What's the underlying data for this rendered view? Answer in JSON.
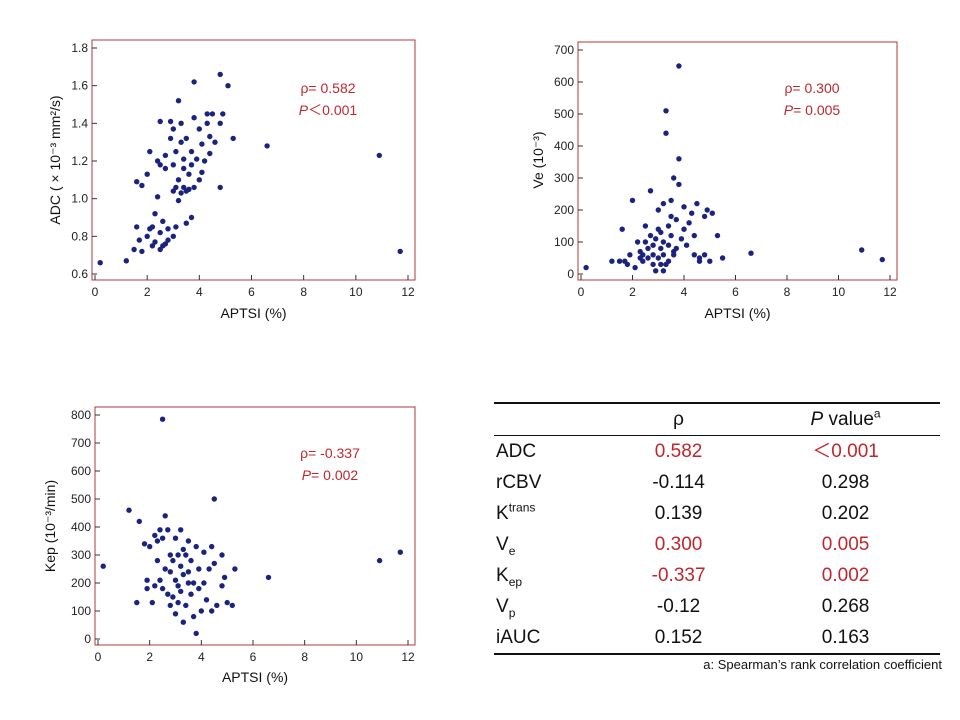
{
  "chart_data": [
    {
      "type": "scatter",
      "id": "adc",
      "xlabel": "APTSI (%)",
      "ylabel": "ADC ( × 10⁻³ mm²/s)",
      "xlim": [
        0,
        12
      ],
      "ylim": [
        0.6,
        1.8
      ],
      "xticks": [
        0,
        2,
        4,
        6,
        8,
        10,
        12
      ],
      "yticks": [
        0.6,
        0.8,
        1.0,
        1.2,
        1.4,
        1.6,
        1.8
      ],
      "ytick_labels": [
        "0.6",
        "0.8",
        "1.0",
        "1.2",
        "1.4",
        "1.6",
        "1.8"
      ],
      "annotation": {
        "rho": "ρ= 0.582",
        "p_label": "P",
        "p_rest": "＜0.001"
      },
      "points": [
        [
          0.2,
          0.66
        ],
        [
          1.2,
          0.67
        ],
        [
          1.5,
          0.73
        ],
        [
          1.6,
          0.85
        ],
        [
          1.8,
          0.72
        ],
        [
          1.7,
          0.78
        ],
        [
          1.6,
          1.09
        ],
        [
          1.8,
          1.07
        ],
        [
          2.0,
          0.8
        ],
        [
          2.1,
          0.84
        ],
        [
          2.0,
          1.13
        ],
        [
          2.1,
          1.25
        ],
        [
          2.2,
          0.85
        ],
        [
          2.2,
          0.75
        ],
        [
          2.3,
          0.77
        ],
        [
          2.3,
          0.92
        ],
        [
          2.4,
          1.01
        ],
        [
          2.4,
          1.2
        ],
        [
          2.5,
          0.73
        ],
        [
          2.5,
          0.82
        ],
        [
          2.5,
          1.18
        ],
        [
          2.5,
          1.41
        ],
        [
          2.6,
          0.75
        ],
        [
          2.6,
          0.88
        ],
        [
          2.7,
          0.76
        ],
        [
          2.7,
          1.16
        ],
        [
          2.7,
          1.23
        ],
        [
          2.8,
          0.84
        ],
        [
          2.8,
          0.78
        ],
        [
          2.9,
          1.32
        ],
        [
          2.9,
          1.41
        ],
        [
          3.0,
          0.8
        ],
        [
          3.0,
          1.04
        ],
        [
          3.0,
          1.18
        ],
        [
          3.0,
          1.37
        ],
        [
          3.1,
          0.85
        ],
        [
          3.1,
          1.06
        ],
        [
          3.1,
          1.25
        ],
        [
          3.2,
          0.99
        ],
        [
          3.2,
          1.1
        ],
        [
          3.2,
          1.52
        ],
        [
          3.3,
          1.03
        ],
        [
          3.3,
          1.3
        ],
        [
          3.3,
          1.4
        ],
        [
          3.4,
          1.06
        ],
        [
          3.4,
          1.16
        ],
        [
          3.4,
          1.21
        ],
        [
          3.5,
          0.87
        ],
        [
          3.5,
          1.04
        ],
        [
          3.5,
          1.32
        ],
        [
          3.6,
          1.05
        ],
        [
          3.6,
          1.13
        ],
        [
          3.7,
          0.9
        ],
        [
          3.7,
          1.18
        ],
        [
          3.7,
          1.25
        ],
        [
          3.8,
          1.06
        ],
        [
          3.8,
          1.43
        ],
        [
          3.8,
          1.62
        ],
        [
          3.9,
          1.21
        ],
        [
          4.0,
          1.37
        ],
        [
          4.0,
          1.1
        ],
        [
          4.1,
          1.14
        ],
        [
          4.1,
          1.29
        ],
        [
          4.2,
          1.2
        ],
        [
          4.3,
          1.4
        ],
        [
          4.3,
          1.45
        ],
        [
          4.4,
          1.24
        ],
        [
          4.4,
          1.33
        ],
        [
          4.5,
          1.45
        ],
        [
          4.6,
          1.3
        ],
        [
          4.8,
          1.06
        ],
        [
          4.8,
          1.4
        ],
        [
          4.8,
          1.66
        ],
        [
          4.9,
          1.45
        ],
        [
          5.1,
          1.6
        ],
        [
          5.3,
          1.32
        ],
        [
          6.6,
          1.28
        ],
        [
          10.9,
          1.23
        ],
        [
          11.7,
          0.72
        ]
      ]
    },
    {
      "type": "scatter",
      "id": "ve",
      "xlabel": "APTSI (%)",
      "ylabel": "Ve (10⁻³)",
      "xlim": [
        0,
        12
      ],
      "ylim": [
        0,
        700
      ],
      "xticks": [
        0,
        2,
        4,
        6,
        8,
        10,
        12
      ],
      "yticks": [
        0,
        100,
        200,
        300,
        400,
        500,
        600,
        700
      ],
      "annotation": {
        "rho": "ρ= 0.300",
        "p_label": "P",
        "p_rest": "= 0.005"
      },
      "points": [
        [
          0.2,
          20
        ],
        [
          1.2,
          40
        ],
        [
          1.5,
          40
        ],
        [
          1.6,
          140
        ],
        [
          1.7,
          40
        ],
        [
          1.8,
          30
        ],
        [
          1.9,
          60
        ],
        [
          2.0,
          230
        ],
        [
          2.1,
          20
        ],
        [
          2.2,
          100
        ],
        [
          2.3,
          50
        ],
        [
          2.3,
          70
        ],
        [
          2.4,
          60
        ],
        [
          2.4,
          40
        ],
        [
          2.5,
          100
        ],
        [
          2.5,
          150
        ],
        [
          2.6,
          50
        ],
        [
          2.6,
          80
        ],
        [
          2.7,
          120
        ],
        [
          2.7,
          260
        ],
        [
          2.8,
          30
        ],
        [
          2.8,
          60
        ],
        [
          2.8,
          90
        ],
        [
          2.9,
          10
        ],
        [
          2.9,
          110
        ],
        [
          3.0,
          50
        ],
        [
          3.0,
          140
        ],
        [
          3.0,
          200
        ],
        [
          3.1,
          30
        ],
        [
          3.1,
          80
        ],
        [
          3.1,
          130
        ],
        [
          3.2,
          10
        ],
        [
          3.2,
          60
        ],
        [
          3.2,
          100
        ],
        [
          3.2,
          220
        ],
        [
          3.3,
          30
        ],
        [
          3.3,
          510
        ],
        [
          3.3,
          440
        ],
        [
          3.4,
          40
        ],
        [
          3.4,
          90
        ],
        [
          3.4,
          150
        ],
        [
          3.5,
          120
        ],
        [
          3.5,
          180
        ],
        [
          3.5,
          230
        ],
        [
          3.6,
          60
        ],
        [
          3.6,
          70
        ],
        [
          3.6,
          300
        ],
        [
          3.7,
          80
        ],
        [
          3.7,
          170
        ],
        [
          3.8,
          280
        ],
        [
          3.8,
          360
        ],
        [
          3.8,
          650
        ],
        [
          3.9,
          110
        ],
        [
          4.0,
          140
        ],
        [
          4.0,
          210
        ],
        [
          4.1,
          90
        ],
        [
          4.2,
          160
        ],
        [
          4.3,
          190
        ],
        [
          4.4,
          60
        ],
        [
          4.4,
          120
        ],
        [
          4.5,
          220
        ],
        [
          4.6,
          40
        ],
        [
          4.6,
          50
        ],
        [
          4.8,
          180
        ],
        [
          4.8,
          60
        ],
        [
          4.9,
          200
        ],
        [
          5.0,
          40
        ],
        [
          5.1,
          190
        ],
        [
          5.3,
          120
        ],
        [
          5.5,
          50
        ],
        [
          6.6,
          65
        ],
        [
          10.9,
          75
        ],
        [
          11.7,
          45
        ]
      ]
    },
    {
      "type": "scatter",
      "id": "kep",
      "xlabel": "APTSI (%)",
      "ylabel": "Kep (10⁻³/min)",
      "xlim": [
        0,
        12
      ],
      "ylim": [
        0,
        800
      ],
      "xticks": [
        0,
        2,
        4,
        6,
        8,
        10,
        12
      ],
      "yticks": [
        0,
        100,
        200,
        300,
        400,
        500,
        600,
        700,
        800
      ],
      "annotation": {
        "rho": "ρ= -0.337",
        "p_label": "P",
        "p_rest": "= 0.002"
      },
      "points": [
        [
          0.2,
          260
        ],
        [
          1.2,
          460
        ],
        [
          1.5,
          130
        ],
        [
          1.6,
          420
        ],
        [
          1.8,
          340
        ],
        [
          1.9,
          210
        ],
        [
          1.9,
          180
        ],
        [
          2.0,
          330
        ],
        [
          2.1,
          130
        ],
        [
          2.2,
          190
        ],
        [
          2.2,
          370
        ],
        [
          2.3,
          350
        ],
        [
          2.3,
          280
        ],
        [
          2.4,
          210
        ],
        [
          2.4,
          390
        ],
        [
          2.5,
          180
        ],
        [
          2.5,
          360
        ],
        [
          2.5,
          785
        ],
        [
          2.6,
          440
        ],
        [
          2.6,
          250
        ],
        [
          2.7,
          390
        ],
        [
          2.7,
          160
        ],
        [
          2.8,
          300
        ],
        [
          2.8,
          240
        ],
        [
          2.8,
          120
        ],
        [
          2.9,
          280
        ],
        [
          2.9,
          150
        ],
        [
          3.0,
          360
        ],
        [
          3.0,
          210
        ],
        [
          3.0,
          90
        ],
        [
          3.1,
          300
        ],
        [
          3.1,
          190
        ],
        [
          3.1,
          130
        ],
        [
          3.2,
          390
        ],
        [
          3.2,
          260
        ],
        [
          3.2,
          170
        ],
        [
          3.3,
          320
        ],
        [
          3.3,
          230
        ],
        [
          3.3,
          60
        ],
        [
          3.4,
          300
        ],
        [
          3.4,
          120
        ],
        [
          3.5,
          350
        ],
        [
          3.5,
          240
        ],
        [
          3.5,
          200
        ],
        [
          3.6,
          280
        ],
        [
          3.6,
          160
        ],
        [
          3.7,
          80
        ],
        [
          3.7,
          200
        ],
        [
          3.8,
          330
        ],
        [
          3.8,
          20
        ],
        [
          3.9,
          250
        ],
        [
          3.9,
          180
        ],
        [
          4.0,
          100
        ],
        [
          4.1,
          310
        ],
        [
          4.1,
          200
        ],
        [
          4.2,
          140
        ],
        [
          4.3,
          250
        ],
        [
          4.4,
          330
        ],
        [
          4.4,
          100
        ],
        [
          4.5,
          270
        ],
        [
          4.5,
          500
        ],
        [
          4.6,
          120
        ],
        [
          4.8,
          300
        ],
        [
          4.8,
          190
        ],
        [
          4.9,
          220
        ],
        [
          5.0,
          130
        ],
        [
          5.2,
          120
        ],
        [
          5.3,
          250
        ],
        [
          6.6,
          220
        ],
        [
          10.9,
          280
        ],
        [
          11.7,
          310
        ]
      ]
    }
  ],
  "table": {
    "header": {
      "rho": "ρ",
      "p_label": "P",
      "p_rest": " value",
      "p_sup": "a"
    },
    "rows": [
      {
        "main": "ADC",
        "sub": "",
        "sup": "",
        "rho": "0.582",
        "p": "＜0.001",
        "highlight": true
      },
      {
        "main": "rCBV",
        "sub": "",
        "sup": "",
        "rho": "-0.114",
        "p": "0.298",
        "highlight": false
      },
      {
        "main": "K",
        "sub": "",
        "sup": "trans",
        "rho": "0.139",
        "p": "0.202",
        "highlight": false
      },
      {
        "main": "V",
        "sub": "e",
        "sup": "",
        "rho": "0.300",
        "p": "0.005",
        "highlight": true
      },
      {
        "main": "K",
        "sub": "ep",
        "sup": "",
        "rho": "-0.337",
        "p": "0.002",
        "highlight": true
      },
      {
        "main": "V",
        "sub": "p",
        "sup": "",
        "rho": "-0.12",
        "p": "0.268",
        "highlight": false
      },
      {
        "main": "iAUC",
        "sub": "",
        "sup": "",
        "rho": "0.152",
        "p": "0.163",
        "highlight": false
      }
    ],
    "footnote": "a: Spearman’s rank correlation coefficient"
  }
}
